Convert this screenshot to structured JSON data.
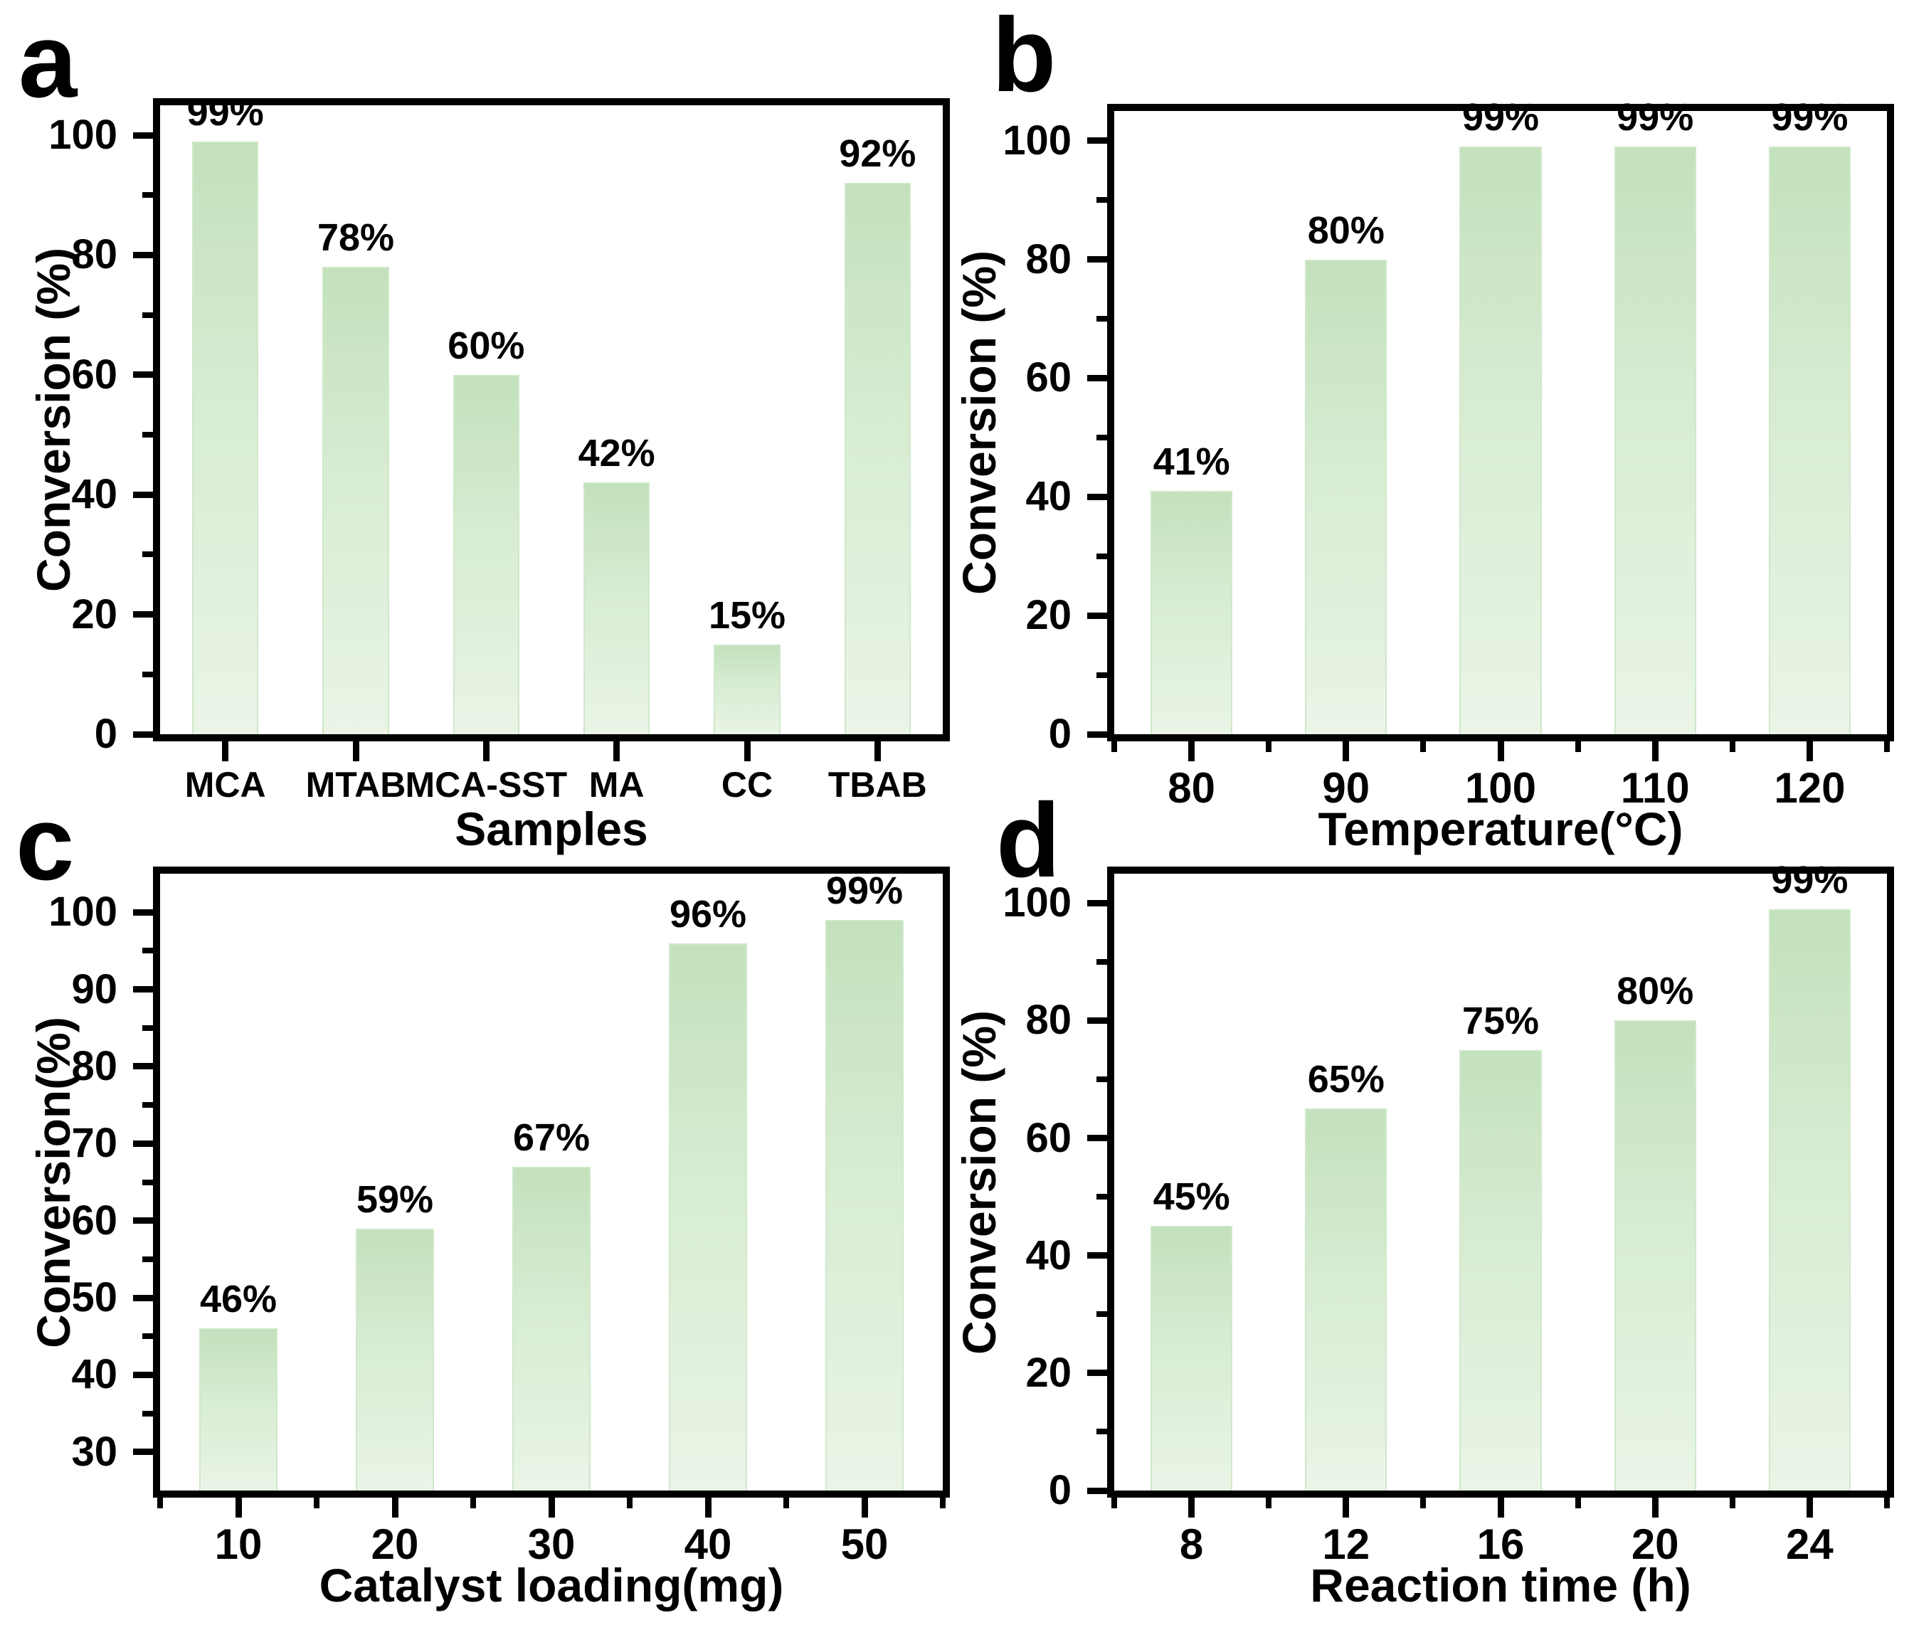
{
  "figure": {
    "background": "#ffffff",
    "text_color": "#000000",
    "axis_color": "#000000",
    "bar_gradient_top": "#c3e1bc",
    "bar_gradient_mid": "#d8ecd3",
    "bar_gradient_bottom": "#eaf5e7",
    "bar_border": "#cfe8ca"
  },
  "chart_data": [
    {
      "panel_label": "a",
      "type": "bar",
      "title": "",
      "xlabel": "Samples",
      "ylabel": "Conversion (%)",
      "categories": [
        "MCA",
        "MTAB",
        "MCA-SST",
        "MA",
        "CC",
        "TBAB"
      ],
      "values": [
        99,
        78,
        60,
        42,
        15,
        92
      ],
      "value_labels": [
        "99%",
        "78%",
        "60%",
        "42%",
        "15%",
        "92%"
      ],
      "ylim": [
        0,
        105
      ],
      "ytick_major": 20,
      "ytick_minor": 10,
      "grid": false,
      "legend": null
    },
    {
      "panel_label": "b",
      "type": "bar",
      "title": "",
      "xlabel": "Temperature(°C)",
      "ylabel": "Conversion (%)",
      "categories": [
        "80",
        "90",
        "100",
        "110",
        "120"
      ],
      "values": [
        41,
        80,
        99,
        99,
        99
      ],
      "value_labels": [
        "41%",
        "80%",
        "99%",
        "99%",
        "99%"
      ],
      "ylim": [
        0,
        105
      ],
      "ytick_major": 20,
      "ytick_minor": 10,
      "grid": false,
      "legend": null
    },
    {
      "panel_label": "c",
      "type": "bar",
      "title": "",
      "xlabel": "Catalyst loading(mg)",
      "ylabel": "Conversion(%)",
      "categories": [
        "10",
        "20",
        "30",
        "40",
        "50"
      ],
      "values": [
        46,
        59,
        67,
        96,
        99
      ],
      "value_labels": [
        "46%",
        "59%",
        "67%",
        "96%",
        "99%"
      ],
      "ylim": [
        25,
        105
      ],
      "ytick_major": 10,
      "ytick_minor": 5,
      "grid": false,
      "legend": null
    },
    {
      "panel_label": "d",
      "type": "bar",
      "title": "",
      "xlabel": "Reaction time (h)",
      "ylabel": "Conversion (%)",
      "categories": [
        "8",
        "12",
        "16",
        "20",
        "24"
      ],
      "values": [
        45,
        65,
        75,
        80,
        99
      ],
      "value_labels": [
        "45%",
        "65%",
        "75%",
        "80%",
        "99%"
      ],
      "ylim": [
        0,
        105
      ],
      "ytick_major": 20,
      "ytick_minor": 10,
      "grid": false,
      "legend": null
    }
  ]
}
